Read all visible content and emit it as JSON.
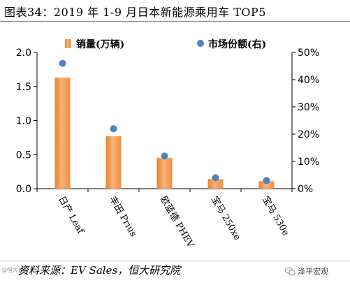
{
  "header": {
    "title": "图表34：2019 年 1-9 月日本新能源乘用车 TOP5"
  },
  "footer": {
    "source": "资料来源：EV Sales，恒大研究院",
    "corner_mark": "@恒大研究",
    "watermark": "泽平宏观"
  },
  "colors": {
    "bar_top": "#f7b27a",
    "bar_mid": "#f29a4e",
    "bar_edge": "#e8822a",
    "marker": "#4f81bd"
  },
  "chart_data": {
    "type": "bar",
    "categories": [
      "日产 Leaf",
      "丰田 Prius",
      "欧蓝德 PHEV",
      "宝马 250xe",
      "宝马 530e"
    ],
    "series": [
      {
        "name": "销量(万辆)",
        "type": "bar",
        "axis": "left",
        "values": [
          1.63,
          0.77,
          0.45,
          0.14,
          0.11
        ]
      },
      {
        "name": "市场份额(右)",
        "type": "scatter",
        "axis": "right",
        "values": [
          0.46,
          0.22,
          0.12,
          0.04,
          0.03
        ]
      }
    ],
    "left_axis": {
      "min": 0,
      "max": 2.0,
      "ticks": [
        "0.0",
        "0.5",
        "1.0",
        "1.5",
        "2.0"
      ]
    },
    "right_axis": {
      "min": 0,
      "max": 0.5,
      "ticks": [
        "0%",
        "10%",
        "20%",
        "30%",
        "40%",
        "50%"
      ]
    },
    "legend_position": "top",
    "grid": false
  }
}
